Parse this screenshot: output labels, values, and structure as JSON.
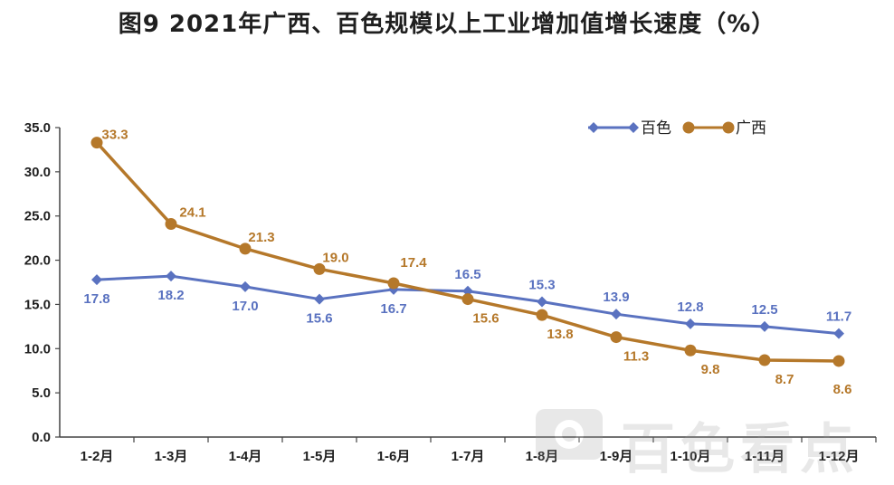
{
  "title": "图9  2021年广西、百色规模以上工业增加值增长速度（%）",
  "watermark": "百色看点",
  "chart_data": {
    "type": "line",
    "categories": [
      "1-2月",
      "1-3月",
      "1-4月",
      "1-5月",
      "1-6月",
      "1-7月",
      "1-8月",
      "1-9月",
      "1-10月",
      "1-11月",
      "1-12月"
    ],
    "ylim": [
      0,
      35
    ],
    "yticks": [
      "0.0",
      "5.0",
      "10.0",
      "15.0",
      "20.0",
      "25.0",
      "30.0",
      "35.0"
    ],
    "grid": false,
    "legend_position": "top-right",
    "series": [
      {
        "name": "百色",
        "color": "#5a72c0",
        "marker": "diamond",
        "values": [
          17.8,
          18.2,
          17.0,
          15.6,
          16.7,
          16.5,
          15.3,
          13.9,
          12.8,
          12.5,
          11.7
        ],
        "labels": [
          "17.8",
          "18.2",
          "17.0",
          "15.6",
          "16.7",
          "16.5",
          "15.3",
          "13.9",
          "12.8",
          "12.5",
          "11.7"
        ]
      },
      {
        "name": "广西",
        "color": "#b5782a",
        "marker": "circle",
        "values": [
          33.3,
          24.1,
          21.3,
          19.0,
          17.4,
          15.6,
          13.8,
          11.3,
          9.8,
          8.7,
          8.6
        ],
        "labels": [
          "33.3",
          "24.1",
          "21.3",
          "19.0",
          "17.4",
          "15.6",
          "13.8",
          "11.3",
          "9.8",
          "8.7",
          "8.6"
        ]
      }
    ]
  }
}
